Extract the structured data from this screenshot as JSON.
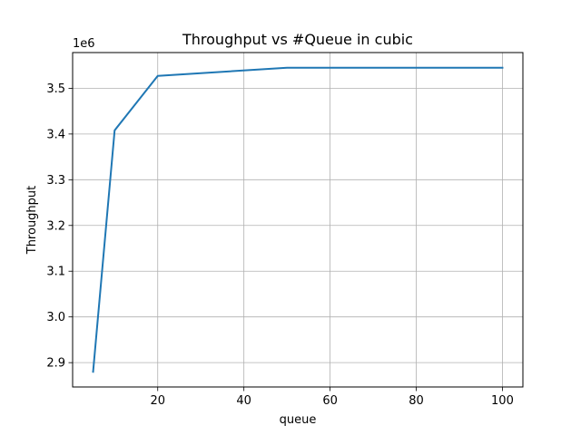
{
  "chart_data": {
    "type": "line",
    "title": "Throughput vs #Queue in cubic",
    "xlabel": "queue",
    "ylabel": "Throughput",
    "y_offset_label": "1e6",
    "xlim": [
      0.25,
      104.75
    ],
    "ylim": [
      2.8468,
      3.5781
    ],
    "x_ticks": [
      20,
      40,
      60,
      80,
      100
    ],
    "x_tick_labels": [
      "20",
      "40",
      "60",
      "80",
      "100"
    ],
    "y_ticks": [
      2.9,
      3.0,
      3.1,
      3.2,
      3.3,
      3.4,
      3.5
    ],
    "y_tick_labels": [
      "2.9",
      "3.0",
      "3.1",
      "3.2",
      "3.3",
      "3.4",
      "3.5"
    ],
    "grid": true,
    "series": [
      {
        "color": "#1f77b4",
        "x": [
          5,
          10,
          20,
          50,
          100
        ],
        "y": [
          2.88,
          3.408,
          3.527,
          3.545,
          3.545
        ]
      }
    ]
  }
}
